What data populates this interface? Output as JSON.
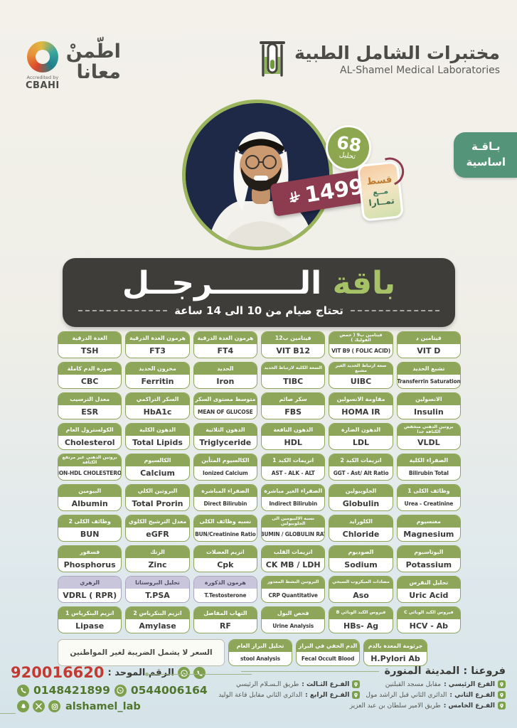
{
  "accreditation": {
    "line1": "اطّمنْ",
    "line2": "معانا",
    "accredited_by": "Accredited by",
    "org": "CBAHI"
  },
  "brand": {
    "name_ar": "مختبرات الشامل الطبية",
    "name_en": "AL-Shamel Medical Laboratories"
  },
  "badges": {
    "test_count": "68",
    "test_count_unit": "تحليل",
    "price": "1499",
    "currency_symbol_name": "saudi-riyal",
    "tamara_lines": [
      "قسط",
      "مــع",
      "تمــارا"
    ],
    "package_tab": [
      "بـاقـة",
      "اساسية"
    ]
  },
  "title": {
    "highlight": "باقة",
    "rest": " الــــــــرجــل",
    "subtitle": "تحتاج صيام من 10 الى 14 ساعة"
  },
  "tests": {
    "rows": [
      [
        {
          "ar": "فيتامين د",
          "en": "VIT D"
        },
        {
          "ar": "فيتامين ب9 ( حمض الفوليك )",
          "en": "VIT B9 ( FOLIC ACID)"
        },
        {
          "ar": "فيتامين ب12",
          "en": "VIT B12"
        },
        {
          "ar": "هرمون الغدة الدرقية",
          "en": "FT4"
        },
        {
          "ar": "هرمون الغدة الدرقية",
          "en": "FT3"
        },
        {
          "ar": "الغدة الدرقية",
          "en": "TSH"
        }
      ],
      [
        {
          "ar": "تشبع الحديد",
          "en": "Transferrin Saturation"
        },
        {
          "ar": "سعة ارتباط الحديد الغير مشبع",
          "en": "UIBC"
        },
        {
          "ar": "السعة الكلية لارتباط الحديد",
          "en": "TIBC"
        },
        {
          "ar": "الحديد",
          "en": "Iron"
        },
        {
          "ar": "مخزون الحديد",
          "en": "Ferritin"
        },
        {
          "ar": "صورة الدم كاملة",
          "en": "CBC"
        }
      ],
      [
        {
          "ar": "الانسولين",
          "en": "Insulin"
        },
        {
          "ar": "مقاومة الانسولين",
          "en": "HOMA IR"
        },
        {
          "ar": "سكر صائم",
          "en": "FBS"
        },
        {
          "ar": "متوسط مستوى السكر",
          "en": "MEAN OF GLUCOSE"
        },
        {
          "ar": "السكر التراكمي",
          "en": "HbA1c"
        },
        {
          "ar": "معدل الترسيب",
          "en": "ESR"
        }
      ],
      [
        {
          "ar": "بروتين الدهني منخفض الكثافة جدا",
          "en": "VLDL"
        },
        {
          "ar": "الدهون الضارة",
          "en": "LDL"
        },
        {
          "ar": "الدهون النافعة",
          "en": "HDL"
        },
        {
          "ar": "الدهون الثلاثية",
          "en": "Triglyceride"
        },
        {
          "ar": "الدهون الكلية",
          "en": "Total Lipids"
        },
        {
          "ar": "الكولسترول العام",
          "en": "Cholesterol"
        }
      ],
      [
        {
          "ar": "الصفراء الكلية",
          "en": "Bilirubin Total"
        },
        {
          "ar": "انزيمات الكبد 2",
          "en": "GGT - Ast/ Alt Ratio"
        },
        {
          "ar": "انزيمات الكبد 1",
          "en": "AST - ALK - ALT"
        },
        {
          "ar": "الكالسيوم المتأين",
          "en": "Ionized Calcium"
        },
        {
          "ar": "الكالسيوم",
          "en": "Calcium"
        },
        {
          "ar": "بروتين الدهني غير مرتفع الكثافة",
          "en": "NON-HDL CHOLESTEROL"
        }
      ],
      [
        {
          "ar": "وظائف الكلى 1",
          "en": "Urea - Creatinine"
        },
        {
          "ar": "الجلوبيولين",
          "en": "Globulin"
        },
        {
          "ar": "الصفراء الغير مباشرة",
          "en": "Indirect Bilirubin"
        },
        {
          "ar": "الصفراء المباشرة",
          "en": "Direct Bilirubin"
        },
        {
          "ar": "البروتين الكلي",
          "en": "Total Prorin"
        },
        {
          "ar": "البيومين",
          "en": "Albumin"
        }
      ],
      [
        {
          "ar": "مغنسيوم",
          "en": "Magnesium"
        },
        {
          "ar": "الكلورايد",
          "en": "Chloride"
        },
        {
          "ar": "نسبه الالبيومين الى الجلوبيولين",
          "en": "ALBUMIN / GLOBULIN RATIO"
        },
        {
          "ar": "نسبه وظائف الكلى",
          "en": "BUN/Creatinine Ratio"
        },
        {
          "ar": "معدل الترشيح الكلوي",
          "en": "eGFR"
        },
        {
          "ar": "وظائف الكلى 2",
          "en": "BUN"
        }
      ],
      [
        {
          "ar": "البوتاسيوم",
          "en": "Potassium"
        },
        {
          "ar": "الصوديوم",
          "en": "Sodium"
        },
        {
          "ar": "انزيمات القلب",
          "en": "CK MB / LDH"
        },
        {
          "ar": "انزيم العضلات",
          "en": "Cpk"
        },
        {
          "ar": "الزنك",
          "en": "Zinc"
        },
        {
          "ar": "فسفور",
          "en": "Phosphorus"
        }
      ],
      [
        {
          "ar": "تحليل النقرس",
          "en": "Uric Acid"
        },
        {
          "ar": "مضادات الميكروب السبحي",
          "en": "Aso"
        },
        {
          "ar": "البروتين النشط المعدور",
          "en": "CRP Quantitative"
        },
        {
          "ar": "هرمون الذكورة",
          "en": "T.Testosterone",
          "style": "purple"
        },
        {
          "ar": "تحليل البروستاتا",
          "en": "T.PSA",
          "style": "purple"
        },
        {
          "ar": "الزهري",
          "en": "VDRL ( RPR)",
          "style": "purple"
        }
      ],
      [
        {
          "ar": "فيروس الكبد الوبائي C",
          "en": "HCV - Ab"
        },
        {
          "ar": "فيروس الكبد الوبائي B",
          "en": "HBs- Ag"
        },
        {
          "ar": "فحص البول",
          "en": "Urine Analysis"
        },
        {
          "ar": "التهاب المفاصل",
          "en": "RF"
        },
        {
          "ar": "انزيم البنكرياس 2",
          "en": "Amylase"
        },
        {
          "ar": "انزيم البنكرياس 1",
          "en": "Lipase"
        }
      ]
    ],
    "last_row": [
      {
        "ar": "جرثومة المعدة بالدم",
        "en": "H.Pylori Ab"
      },
      {
        "ar": "الدم الخفي في البراز",
        "en": "Fecal Occult Blood"
      },
      {
        "ar": "تحليل البراز العام",
        "en": "stool Analysis"
      }
    ],
    "note": "السعر لا يشمل الضريبة لغير المواطنين"
  },
  "footer": {
    "branches_title": "فروعنا : المدينة المنورة",
    "branches": [
      {
        "label": "الفرع الرئيسي :",
        "value": "مقابل مسجد القبلتين"
      },
      {
        "label": "الفـرع الثـالث :",
        "value": "طريق الـسـلام الرئيسي"
      },
      {
        "label": "الفـرع الثاني :",
        "value": "الدائري الثاني قبل الراشد مول"
      },
      {
        "label": "الفـرع الرابع :",
        "value": "الدائري الثاني مقابل قاعة الوليد"
      },
      {
        "label": "الفـرع الخامس :",
        "value": "طريق الامير سلطان بن عبد العزيز"
      }
    ],
    "unified_label": "الرقم الموحد :",
    "unified_number": "920016620",
    "phone": "0148421899",
    "whatsapp": "0544006164",
    "social_handle": "alshamel_lab"
  },
  "colors": {
    "header_green": "#8da65a",
    "purple_header": "#c9c5da",
    "tab_green": "#549478",
    "price_maroon": "#8d3b4e",
    "title_green": "#a6c266",
    "banner_charcoal": "#3e3d3a",
    "unified_red": "#c23b33",
    "contact_green": "#50762d"
  }
}
